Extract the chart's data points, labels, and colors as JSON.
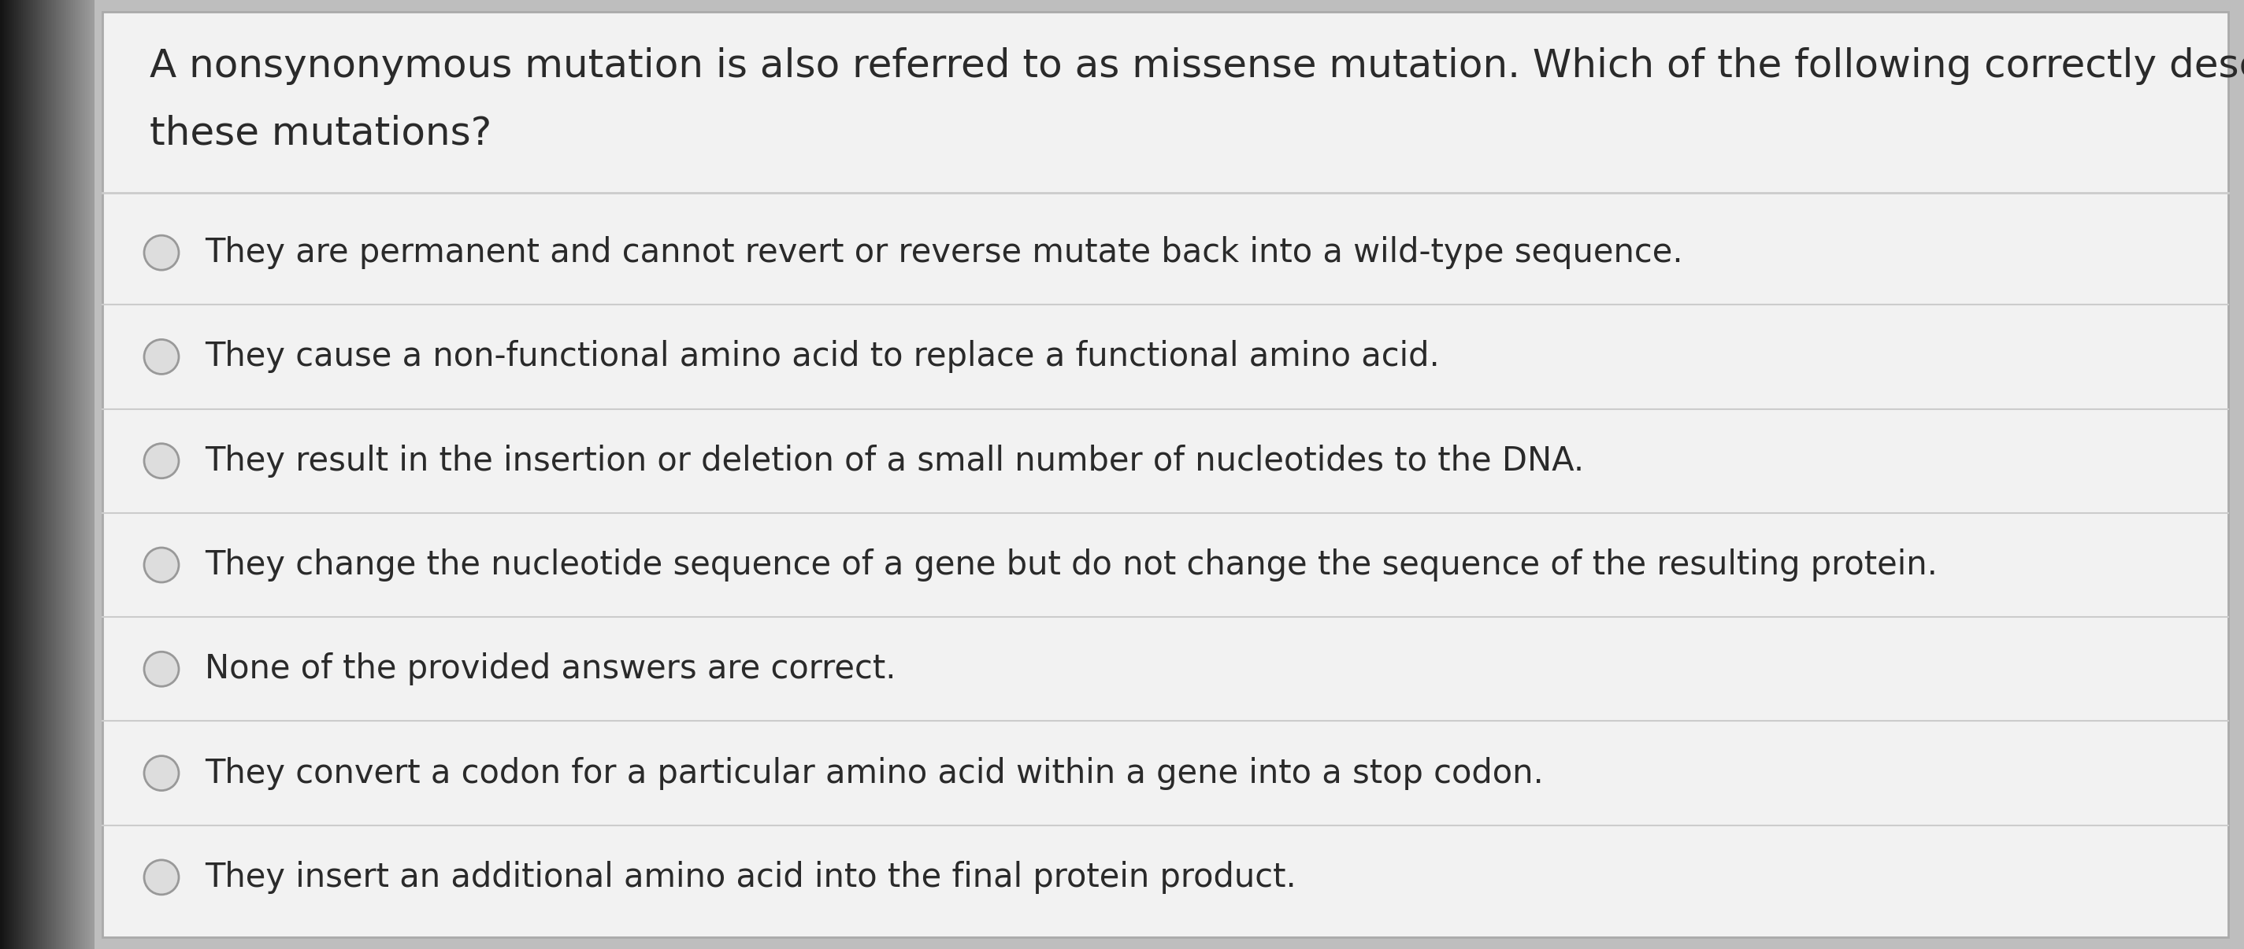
{
  "background_color": "#bebebe",
  "card_color": "#f2f2f2",
  "question_text_line1": "A nonsynonymous mutation is also referred to as missense mutation. Which of the following correctly describe",
  "question_text_line2": "these mutations?",
  "options": [
    "They are permanent and cannot revert or reverse mutate back into a wild-type sequence.",
    "They cause a non-functional amino acid to replace a functional amino acid.",
    "They result in the insertion or deletion of a small number of nucleotides to the DNA.",
    "They change the nucleotide sequence of a gene but do not change the sequence of the resulting protein.",
    "None of the provided answers are correct.",
    "They convert a codon for a particular amino acid within a gene into a stop codon.",
    "They insert an additional amino acid into the final protein product."
  ],
  "question_font_size": 36,
  "option_font_size": 30,
  "text_color": "#2a2a2a",
  "line_color": "#cccccc",
  "circle_edge_color": "#999999",
  "circle_face_color": "#dddddd",
  "left_dark_color": "#1a1a1a",
  "left_mid_color": "#7a7a7a"
}
